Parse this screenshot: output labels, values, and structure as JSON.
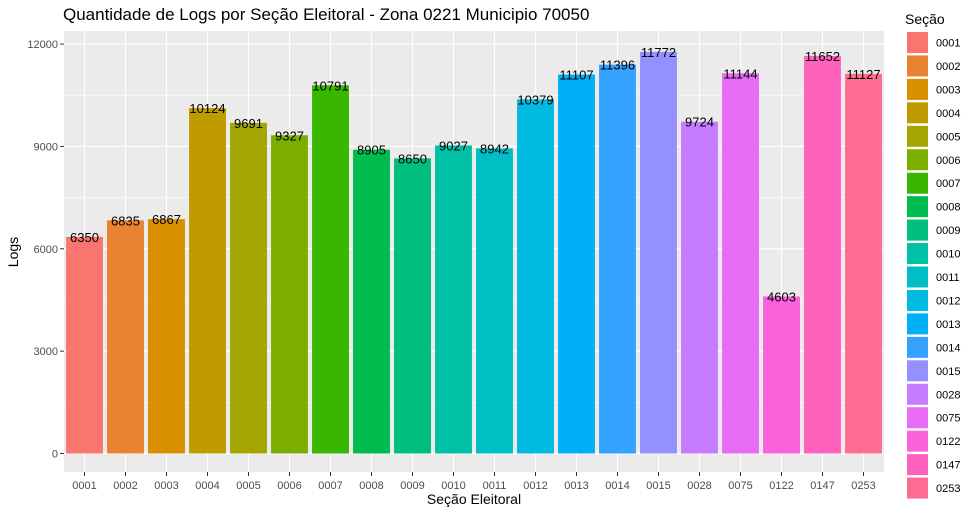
{
  "chart_data": {
    "type": "bar",
    "title": "Quantidade de Logs por Seção Eleitoral - Zona 0221 Municipio 70050",
    "xlabel": "Seção Eleitoral",
    "ylabel": "Logs",
    "ylim": [
      0,
      12300
    ],
    "yticks": [
      0,
      3000,
      6000,
      9000,
      12000
    ],
    "grid": true,
    "legend_title": "Seção",
    "legend_position": "right",
    "categories": [
      "0001",
      "0002",
      "0003",
      "0004",
      "0005",
      "0006",
      "0007",
      "0008",
      "0009",
      "0010",
      "0011",
      "0012",
      "0013",
      "0014",
      "0015",
      "0028",
      "0075",
      "0122",
      "0147",
      "0253"
    ],
    "values": [
      6350,
      6835,
      6867,
      10124,
      9691,
      9327,
      10791,
      8905,
      8650,
      9027,
      8942,
      10379,
      11107,
      11396,
      11772,
      9724,
      11144,
      4603,
      11652,
      11127
    ],
    "colors": [
      "#F8766D",
      "#EA8331",
      "#D89000",
      "#C09B00",
      "#A3A500",
      "#7CAE00",
      "#39B600",
      "#00BB4E",
      "#00BF7D",
      "#00C1A3",
      "#00BFC4",
      "#00BAE0",
      "#00B0F6",
      "#35A2FF",
      "#9590FF",
      "#C77CFF",
      "#E76BF3",
      "#FA62DB",
      "#FF62BC",
      "#FF6C91"
    ]
  }
}
